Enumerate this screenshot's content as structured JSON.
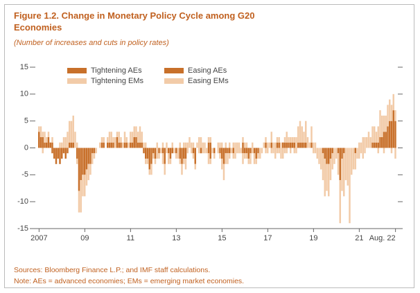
{
  "chart_data": {
    "type": "bar",
    "stacked": true,
    "title": "Figure 1.2.  Change in Monetary Policy Cycle among G20 Economies",
    "subtitle": "(Number of increases and cuts in policy rates)",
    "notes": [
      "Sources: Bloomberg Finance L.P.; and IMF staff calculations.",
      "Note: AEs = advanced economies; EMs = emerging market economies."
    ],
    "categories": [
      "2007",
      null,
      null,
      null,
      null,
      null,
      null,
      null,
      null,
      null,
      null,
      null,
      null,
      null,
      null,
      null,
      null,
      null,
      null,
      null,
      null,
      null,
      null,
      null,
      "09",
      null,
      null,
      null,
      null,
      null,
      null,
      null,
      null,
      null,
      null,
      null,
      null,
      null,
      null,
      null,
      null,
      null,
      null,
      null,
      null,
      null,
      null,
      null,
      "11",
      null,
      null,
      null,
      null,
      null,
      null,
      null,
      null,
      null,
      null,
      null,
      null,
      null,
      null,
      null,
      null,
      null,
      null,
      null,
      null,
      null,
      null,
      null,
      "13",
      null,
      null,
      null,
      null,
      null,
      null,
      null,
      null,
      null,
      null,
      null,
      null,
      null,
      null,
      null,
      null,
      null,
      null,
      null,
      null,
      null,
      null,
      null,
      "15",
      null,
      null,
      null,
      null,
      null,
      null,
      null,
      null,
      null,
      null,
      null,
      null,
      null,
      null,
      null,
      null,
      null,
      null,
      null,
      null,
      null,
      null,
      null,
      "17",
      null,
      null,
      null,
      null,
      null,
      null,
      null,
      null,
      null,
      null,
      null,
      null,
      null,
      null,
      null,
      null,
      null,
      null,
      null,
      null,
      null,
      null,
      null,
      "19",
      null,
      null,
      null,
      null,
      null,
      null,
      null,
      null,
      null,
      null,
      null,
      null,
      null,
      null,
      null,
      null,
      null,
      null,
      null,
      null,
      null,
      null,
      null,
      "21",
      null,
      null,
      null,
      null,
      null,
      null,
      null,
      null,
      null,
      null,
      null,
      null,
      null,
      null,
      null,
      null,
      null,
      null,
      "Aug. 22"
    ],
    "series": [
      {
        "name": "Tightening AEs",
        "color": "#c8702a",
        "values": [
          3,
          2,
          2,
          1,
          1,
          2,
          1,
          1,
          0,
          0,
          0,
          0,
          0,
          0,
          0,
          0,
          1,
          1,
          1,
          0,
          0,
          0,
          0,
          0,
          0,
          0,
          0,
          0,
          0,
          0,
          0,
          0,
          0,
          1,
          1,
          0,
          1,
          1,
          1,
          1,
          0,
          2,
          1,
          1,
          0,
          1,
          1,
          0,
          1,
          1,
          2,
          2,
          1,
          1,
          1,
          0,
          0,
          0,
          0,
          0,
          0,
          0,
          0,
          0,
          0,
          0,
          0,
          0,
          0,
          0,
          0,
          0,
          0,
          0,
          0,
          0,
          0,
          0,
          0,
          0,
          0,
          0,
          0,
          0,
          0,
          0,
          0,
          0,
          0,
          1,
          1,
          0,
          0,
          0,
          0,
          0,
          0,
          0,
          0,
          0,
          0,
          0,
          0,
          0,
          0,
          0,
          0,
          1,
          0,
          0,
          0,
          0,
          0,
          0,
          0,
          0,
          0,
          0,
          0,
          1,
          0,
          0,
          1,
          0,
          0,
          1,
          1,
          0,
          1,
          1,
          1,
          1,
          1,
          1,
          1,
          0,
          1,
          1,
          1,
          1,
          1,
          0,
          0,
          1,
          0,
          0,
          0,
          0,
          0,
          0,
          0,
          0,
          0,
          0,
          0,
          0,
          0,
          0,
          0,
          0,
          0,
          0,
          0,
          0,
          0,
          0,
          0,
          0,
          0,
          0,
          0,
          0,
          0,
          0,
          0,
          1,
          1,
          1,
          1,
          2,
          2,
          3,
          3,
          4,
          5,
          5,
          7,
          5
        ]
      },
      {
        "name": "Easing AEs",
        "color": "#c8702a",
        "values": [
          0,
          0,
          0,
          0,
          0,
          0,
          0,
          -1,
          -2,
          -3,
          -2,
          -3,
          -2,
          -1,
          -2,
          -1,
          0,
          0,
          0,
          0,
          -2,
          -8,
          -6,
          -5,
          -5,
          -4,
          -3,
          -3,
          -1,
          -1,
          0,
          0,
          0,
          0,
          0,
          0,
          0,
          0,
          0,
          0,
          0,
          0,
          0,
          0,
          0,
          0,
          0,
          0,
          0,
          0,
          0,
          0,
          0,
          0,
          0,
          -1,
          -2,
          -2,
          -4,
          -3,
          -1,
          -2,
          0,
          -1,
          0,
          -1,
          -3,
          0,
          -1,
          -2,
          -1,
          0,
          -1,
          0,
          -2,
          -3,
          -2,
          -2,
          0,
          0,
          0,
          -1,
          -3,
          0,
          0,
          -1,
          0,
          0,
          0,
          -1,
          -2,
          0,
          -1,
          0,
          0,
          -1,
          -2,
          -3,
          -1,
          -1,
          -1,
          0,
          -1,
          0,
          0,
          0,
          0,
          -1,
          -1,
          -1,
          -2,
          -1,
          0,
          -1,
          -2,
          -1,
          0,
          0,
          0,
          0,
          0,
          0,
          0,
          0,
          0,
          0,
          0,
          0,
          0,
          0,
          0,
          0,
          0,
          0,
          0,
          0,
          0,
          0,
          0,
          0,
          0,
          0,
          0,
          0,
          0,
          0,
          0,
          0,
          0,
          -1,
          -2,
          -3,
          -3,
          -2,
          -1,
          0,
          0,
          -1,
          -6,
          -2,
          -1,
          0,
          0,
          0,
          0,
          0,
          -1,
          0,
          0,
          0,
          0,
          0,
          0,
          0,
          0,
          0,
          0,
          0,
          0,
          0,
          0,
          0,
          0,
          0,
          0,
          0,
          0,
          0
        ]
      },
      {
        "name": "Tightening EMs",
        "color": "#f2cba8",
        "values": [
          1,
          2,
          1,
          2,
          1,
          1,
          0,
          1,
          0,
          0,
          0,
          1,
          1,
          2,
          2,
          3,
          4,
          4,
          5,
          3,
          1,
          0,
          0,
          0,
          0,
          0,
          0,
          0,
          0,
          0,
          0,
          0,
          1,
          1,
          1,
          0,
          1,
          2,
          2,
          1,
          2,
          1,
          2,
          1,
          1,
          2,
          1,
          1,
          2,
          2,
          2,
          2,
          2,
          3,
          2,
          1,
          1,
          0,
          0,
          0,
          0,
          0,
          1,
          0,
          0,
          1,
          0,
          1,
          0,
          0,
          1,
          0,
          0,
          0,
          1,
          0,
          1,
          1,
          1,
          2,
          1,
          1,
          0,
          1,
          2,
          2,
          1,
          1,
          0,
          1,
          1,
          0,
          0,
          0,
          1,
          1,
          1,
          0,
          1,
          0,
          1,
          0,
          1,
          1,
          1,
          1,
          0,
          1,
          1,
          1,
          0,
          0,
          1,
          0,
          0,
          0,
          0,
          0,
          1,
          1,
          1,
          1,
          2,
          1,
          1,
          1,
          1,
          1,
          0,
          1,
          2,
          1,
          1,
          1,
          1,
          2,
          3,
          4,
          3,
          2,
          4,
          2,
          1,
          3,
          1,
          1,
          0,
          0,
          0,
          0,
          0,
          0,
          0,
          0,
          0,
          0,
          0,
          0,
          0,
          0,
          0,
          0,
          0,
          0,
          0,
          0,
          0,
          0,
          1,
          1,
          2,
          2,
          2,
          3,
          2,
          3,
          3,
          2,
          3,
          5,
          4,
          3,
          3,
          4,
          4,
          3,
          3,
          2
        ]
      },
      {
        "name": "Easing EMs",
        "color": "#f2cba8",
        "values": [
          0,
          0,
          -1,
          0,
          0,
          0,
          0,
          0,
          0,
          0,
          0,
          0,
          0,
          0,
          0,
          0,
          0,
          0,
          0,
          0,
          -1,
          -4,
          -6,
          -4,
          -4,
          -3,
          -3,
          -2,
          -2,
          -1,
          -1,
          0,
          0,
          0,
          0,
          0,
          0,
          0,
          0,
          0,
          0,
          0,
          0,
          0,
          0,
          0,
          0,
          0,
          0,
          0,
          0,
          0,
          0,
          0,
          0,
          0,
          -1,
          -1,
          -1,
          -2,
          -1,
          -1,
          -2,
          -1,
          -1,
          -2,
          -2,
          -1,
          -2,
          -1,
          0,
          -1,
          -1,
          -2,
          -1,
          -2,
          -1,
          -2,
          -1,
          0,
          -1,
          -1,
          -1,
          0,
          -1,
          0,
          -1,
          -1,
          -1,
          -2,
          -1,
          -1,
          -1,
          0,
          -1,
          -1,
          -2,
          -3,
          -2,
          -2,
          -1,
          -1,
          -1,
          -2,
          -1,
          -1,
          -1,
          -2,
          -1,
          -1,
          -1,
          -2,
          -1,
          -2,
          -1,
          -1,
          -2,
          -1,
          0,
          -1,
          -1,
          0,
          -1,
          -1,
          -2,
          -1,
          -1,
          -2,
          -2,
          -1,
          -1,
          0,
          -1,
          0,
          -1,
          -1,
          0,
          0,
          0,
          0,
          0,
          0,
          0,
          0,
          -1,
          -1,
          -2,
          -3,
          -4,
          -5,
          -7,
          -5,
          -6,
          -4,
          -3,
          -3,
          -2,
          -4,
          -8,
          -6,
          -8,
          -6,
          -7,
          -14,
          -5,
          -4,
          -3,
          -2,
          -2,
          -1,
          -2,
          -1,
          0,
          0,
          0,
          0,
          0,
          0,
          -1,
          0,
          0,
          -1,
          0,
          0,
          0,
          -1,
          0,
          -2
        ]
      }
    ],
    "ylim": [
      -15,
      15
    ],
    "yticks": [
      -15,
      -10,
      -5,
      0,
      5,
      10,
      15
    ]
  }
}
